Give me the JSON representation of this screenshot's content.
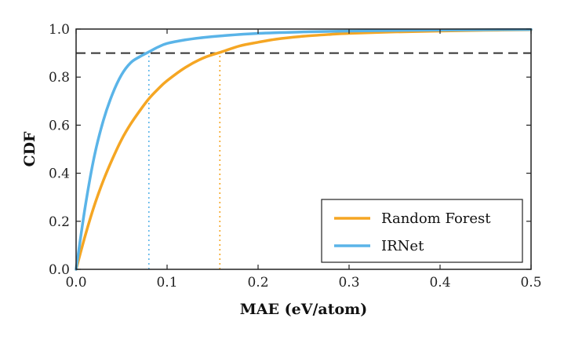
{
  "chart_data": {
    "type": "line",
    "xlabel": "MAE (eV/atom)",
    "ylabel": "CDF",
    "xlim": [
      0.0,
      0.5
    ],
    "ylim": [
      0.0,
      1.0
    ],
    "x_ticks": [
      0.0,
      0.1,
      0.2,
      0.3,
      0.4,
      0.5
    ],
    "x_tick_labels": [
      "0.0",
      "0.1",
      "0.2",
      "0.3",
      "0.4",
      "0.5"
    ],
    "y_ticks": [
      0.0,
      0.2,
      0.4,
      0.6,
      0.8,
      1.0
    ],
    "y_tick_labels": [
      "0.0",
      "0.2",
      "0.4",
      "0.6",
      "0.8",
      "1.0"
    ],
    "grid": false,
    "legend_position": "lower-right",
    "series": [
      {
        "name": "Random Forest",
        "color": "#f5a623",
        "x": [
          0.0,
          0.01,
          0.02,
          0.03,
          0.04,
          0.05,
          0.06,
          0.07,
          0.08,
          0.09,
          0.1,
          0.12,
          0.14,
          0.16,
          0.18,
          0.2,
          0.22,
          0.25,
          0.28,
          0.3,
          0.35,
          0.4,
          0.45,
          0.5
        ],
        "values": [
          0.0,
          0.14,
          0.265,
          0.37,
          0.46,
          0.54,
          0.605,
          0.66,
          0.71,
          0.75,
          0.785,
          0.84,
          0.88,
          0.905,
          0.93,
          0.945,
          0.958,
          0.97,
          0.978,
          0.982,
          0.988,
          0.992,
          0.995,
          0.997
        ]
      },
      {
        "name": "IRNet",
        "color": "#5ab4e8",
        "x": [
          0.0,
          0.01,
          0.02,
          0.03,
          0.04,
          0.05,
          0.06,
          0.07,
          0.08,
          0.09,
          0.1,
          0.12,
          0.14,
          0.16,
          0.2,
          0.25,
          0.3,
          0.4,
          0.5
        ],
        "values": [
          0.0,
          0.26,
          0.47,
          0.62,
          0.73,
          0.81,
          0.86,
          0.885,
          0.905,
          0.925,
          0.94,
          0.955,
          0.965,
          0.972,
          0.982,
          0.988,
          0.992,
          0.996,
          0.998
        ]
      }
    ],
    "reference_lines": [
      {
        "orientation": "horizontal",
        "value": 0.9,
        "style": "dashed",
        "color": "#333333"
      },
      {
        "orientation": "vertical",
        "value": 0.08,
        "style": "dotted",
        "color": "#5ab4e8",
        "ymax": 0.9
      },
      {
        "orientation": "vertical",
        "value": 0.158,
        "style": "dotted",
        "color": "#f5a623",
        "ymax": 0.9
      }
    ]
  }
}
